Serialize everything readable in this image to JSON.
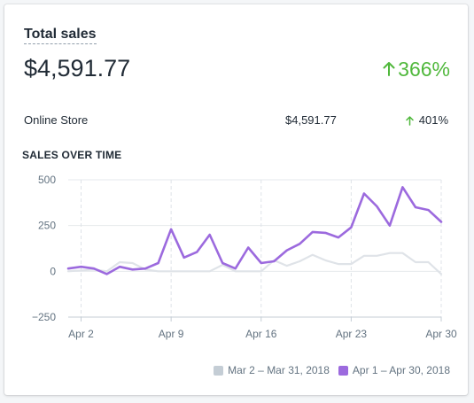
{
  "card": {
    "title": "Total sales",
    "total_value": "$4,591.77",
    "total_change": "366%",
    "breakdown": [
      {
        "label": "Online Store",
        "value": "$4,591.77",
        "change": "401%"
      }
    ],
    "section_title": "SALES OVER TIME"
  },
  "colors": {
    "positive": "#50b83c",
    "current_series": "#9c6ade",
    "previous_series": "#dfe3e8",
    "grid": "#dfe3e8",
    "axis_text": "#637381"
  },
  "icons": {
    "total_change_icon": "arrow-up-icon",
    "row_change_icon": "arrow-up-icon"
  },
  "chart_data": {
    "type": "line",
    "x_ticks": [
      "Apr 2",
      "Apr 9",
      "Apr 16",
      "Apr 23",
      "Apr 30"
    ],
    "x_tick_days": [
      2,
      9,
      16,
      23,
      30
    ],
    "y_ticks": [
      "500",
      "250",
      "0",
      "−250"
    ],
    "y_tick_values": [
      500,
      250,
      0,
      -250
    ],
    "ylim": [
      -250,
      500
    ],
    "xlim": [
      1,
      30
    ],
    "grid": true,
    "legend_position": "bottom-right",
    "series": [
      {
        "name": "Mar 2 – Mar 31, 2018",
        "color": "#dfe3e8",
        "x": [
          1,
          2,
          3,
          4,
          5,
          6,
          7,
          8,
          9,
          10,
          11,
          12,
          13,
          14,
          15,
          16,
          17,
          18,
          19,
          20,
          21,
          22,
          23,
          24,
          25,
          26,
          27,
          28,
          29,
          30
        ],
        "values": [
          0,
          5,
          10,
          0,
          50,
          45,
          10,
          0,
          0,
          0,
          0,
          0,
          35,
          0,
          0,
          0,
          60,
          30,
          55,
          90,
          60,
          40,
          40,
          85,
          85,
          100,
          100,
          50,
          50,
          -15
        ]
      },
      {
        "name": "Apr 1 – Apr 30, 2018",
        "color": "#9c6ade",
        "x": [
          1,
          2,
          3,
          4,
          5,
          6,
          7,
          8,
          9,
          10,
          11,
          12,
          13,
          14,
          15,
          16,
          17,
          18,
          19,
          20,
          21,
          22,
          23,
          24,
          25,
          26,
          27,
          28,
          29,
          30
        ],
        "values": [
          15,
          25,
          15,
          -15,
          25,
          10,
          15,
          45,
          230,
          75,
          105,
          200,
          45,
          15,
          130,
          45,
          55,
          115,
          150,
          215,
          210,
          185,
          240,
          425,
          355,
          250,
          460,
          350,
          335,
          270
        ]
      }
    ]
  }
}
